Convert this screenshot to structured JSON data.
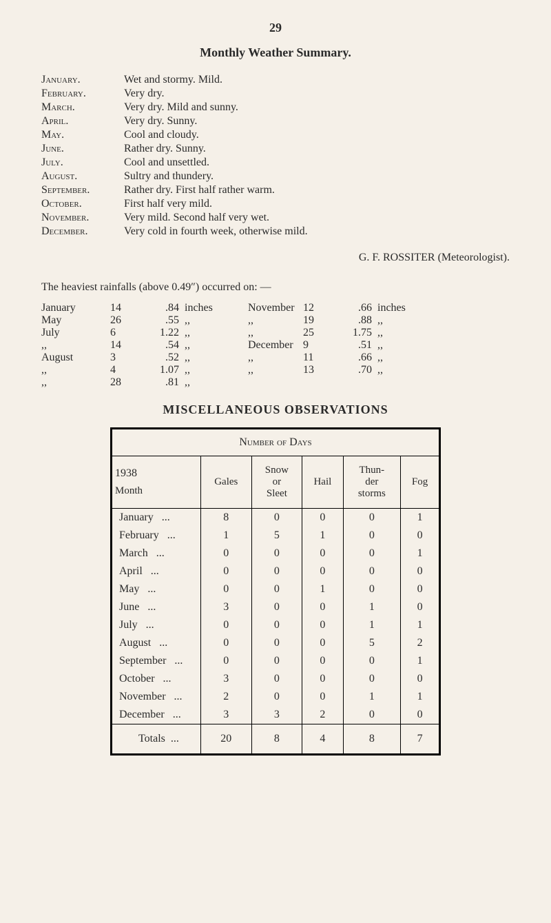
{
  "page_number": "29",
  "main_title": "Monthly Weather Summary.",
  "monthly_summary": [
    {
      "month": "January.",
      "desc": "Wet and stormy.  Mild."
    },
    {
      "month": "February.",
      "desc": "Very dry."
    },
    {
      "month": "March.",
      "desc": "Very dry.  Mild and sunny."
    },
    {
      "month": "April.",
      "desc": "Very dry.  Sunny."
    },
    {
      "month": "May.",
      "desc": "Cool and cloudy."
    },
    {
      "month": "June.",
      "desc": "Rather dry.  Sunny."
    },
    {
      "month": "July.",
      "desc": "Cool and unsettled."
    },
    {
      "month": "August.",
      "desc": "Sultry and thundery."
    },
    {
      "month": "September.",
      "desc": "Rather dry.  First half rather warm."
    },
    {
      "month": "October.",
      "desc": "First half very mild."
    },
    {
      "month": "November.",
      "desc": "Very mild.  Second half very wet."
    },
    {
      "month": "December.",
      "desc": "Very cold in fourth week, otherwise mild."
    }
  ],
  "signature": "G.  F.  ROSSITER  (Meteorologist).",
  "rainfall_intro": "The heaviest rainfalls (above 0.49″) occurred on: —",
  "rainfall_rows": [
    {
      "ml": "January",
      "dl": "14",
      "vl": ".84",
      "ul": "inches",
      "mr": "November",
      "dr": "12",
      "vr": ".66",
      "ur": "inches"
    },
    {
      "ml": "May",
      "dl": "26",
      "vl": ".55",
      "ul": ",,",
      "mr": ",,",
      "dr": "19",
      "vr": ".88",
      "ur": ",,"
    },
    {
      "ml": "July",
      "dl": "6",
      "vl": "1.22",
      "ul": ",,",
      "mr": ",,",
      "dr": "25",
      "vr": "1.75",
      "ur": ",,"
    },
    {
      "ml": ",,",
      "dl": "14",
      "vl": ".54",
      "ul": ",,",
      "mr": "December",
      "dr": "9",
      "vr": ".51",
      "ur": ",,"
    },
    {
      "ml": "August",
      "dl": "3",
      "vl": ".52",
      "ul": ",,",
      "mr": ",,",
      "dr": "11",
      "vr": ".66",
      "ur": ",,"
    },
    {
      "ml": ",,",
      "dl": "4",
      "vl": "1.07",
      "ul": ",,",
      "mr": ",,",
      "dr": "13",
      "vr": ".70",
      "ur": ",,"
    },
    {
      "ml": ",,",
      "dl": "28",
      "vl": ".81",
      "ul": ",,",
      "mr": "",
      "dr": "",
      "vr": "",
      "ur": ""
    }
  ],
  "misc_title": "MISCELLANEOUS OBSERVATIONS",
  "obs_header": "Number of Days",
  "obs_year": "1938",
  "obs_month_label": "Month",
  "obs_columns": [
    "Gales",
    "Snow or Sleet",
    "Hail",
    "Thun-der storms",
    "Fog"
  ],
  "obs_rows": [
    {
      "m": "January",
      "v": [
        "8",
        "0",
        "0",
        "0",
        "1"
      ]
    },
    {
      "m": "February",
      "v": [
        "1",
        "5",
        "1",
        "0",
        "0"
      ]
    },
    {
      "m": "March",
      "v": [
        "0",
        "0",
        "0",
        "0",
        "1"
      ]
    },
    {
      "m": "April",
      "v": [
        "0",
        "0",
        "0",
        "0",
        "0"
      ]
    },
    {
      "m": "May",
      "v": [
        "0",
        "0",
        "1",
        "0",
        "0"
      ]
    },
    {
      "m": "June",
      "v": [
        "3",
        "0",
        "0",
        "1",
        "0"
      ]
    },
    {
      "m": "July",
      "v": [
        "0",
        "0",
        "0",
        "1",
        "1"
      ]
    },
    {
      "m": "August",
      "v": [
        "0",
        "0",
        "0",
        "5",
        "2"
      ]
    },
    {
      "m": "September",
      "v": [
        "0",
        "0",
        "0",
        "0",
        "1"
      ]
    },
    {
      "m": "October",
      "v": [
        "3",
        "0",
        "0",
        "0",
        "0"
      ]
    },
    {
      "m": "November",
      "v": [
        "2",
        "0",
        "0",
        "1",
        "1"
      ]
    },
    {
      "m": "December",
      "v": [
        "3",
        "3",
        "2",
        "0",
        "0"
      ]
    }
  ],
  "obs_totals_label": "Totals",
  "obs_totals": [
    "20",
    "8",
    "4",
    "8",
    "7"
  ]
}
